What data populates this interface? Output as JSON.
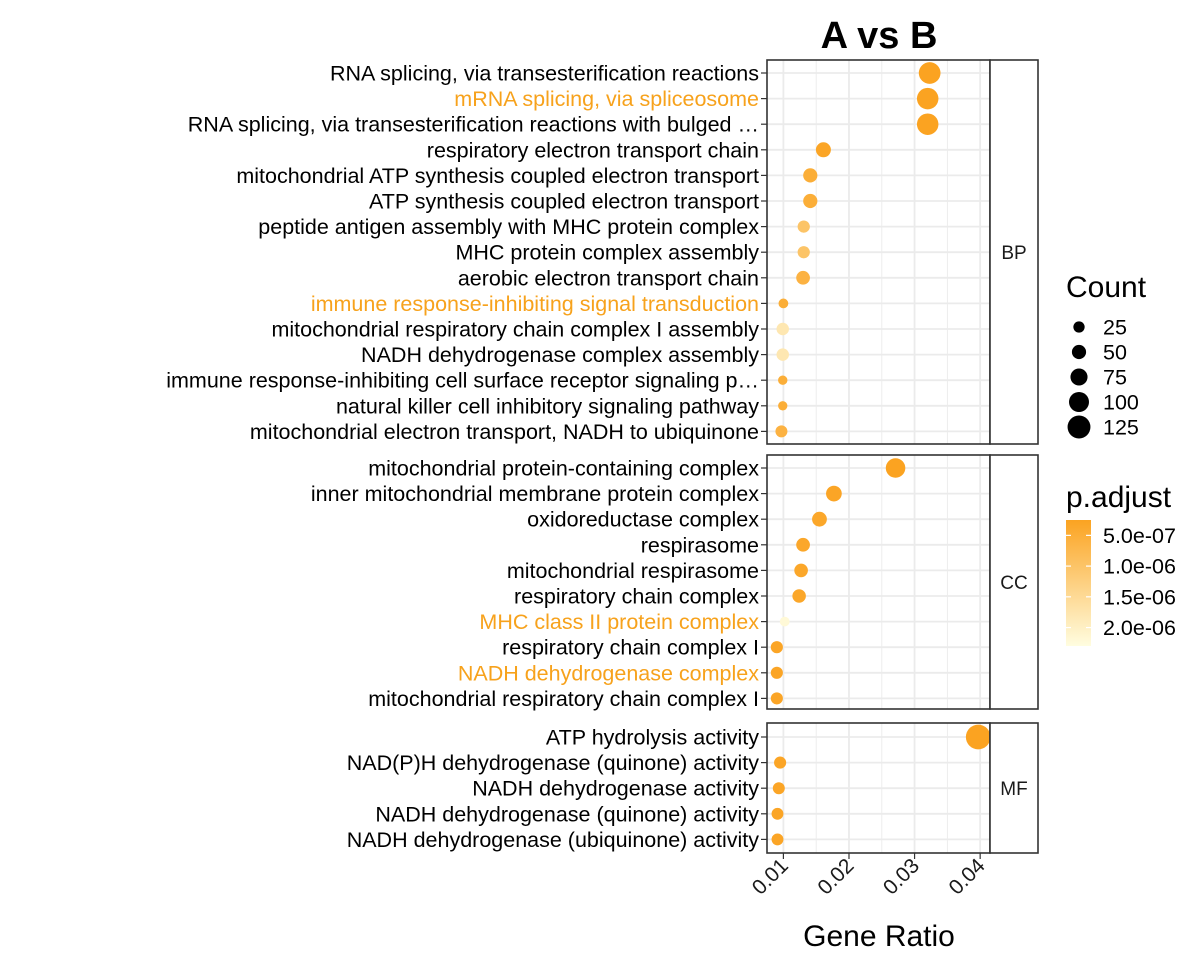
{
  "chart_data": {
    "type": "scatter",
    "title": "A vs B",
    "xlabel": "Gene Ratio",
    "xlim": [
      0.0075,
      0.0415
    ],
    "x_ticks": [
      {
        "value": 0.01,
        "label": "0.01"
      },
      {
        "value": 0.02,
        "label": "0.02"
      },
      {
        "value": 0.03,
        "label": "0.03"
      },
      {
        "value": 0.04,
        "label": "0.04"
      }
    ],
    "panels": [
      {
        "name": "BP",
        "terms": [
          {
            "label": "RNA splicing, via transesterification reactions",
            "gene_ratio": 0.0323,
            "count": 115,
            "p_adjust": 2.5e-07,
            "highlight": false
          },
          {
            "label": "mRNA splicing, via spliceosome",
            "gene_ratio": 0.032,
            "count": 113,
            "p_adjust": 2.5e-07,
            "highlight": true
          },
          {
            "label": "RNA splicing, via transesterification reactions with bulged …",
            "gene_ratio": 0.032,
            "count": 113,
            "p_adjust": 2.5e-07,
            "highlight": false
          },
          {
            "label": "respiratory electron transport chain",
            "gene_ratio": 0.0161,
            "count": 57,
            "p_adjust": 3e-07,
            "highlight": false
          },
          {
            "label": "mitochondrial ATP synthesis coupled electron transport",
            "gene_ratio": 0.0141,
            "count": 50,
            "p_adjust": 5e-07,
            "highlight": false
          },
          {
            "label": "ATP synthesis coupled electron transport",
            "gene_ratio": 0.0141,
            "count": 50,
            "p_adjust": 5e-07,
            "highlight": false
          },
          {
            "label": "peptide antigen assembly with MHC protein complex",
            "gene_ratio": 0.0131,
            "count": 33,
            "p_adjust": 1e-06,
            "highlight": false
          },
          {
            "label": "MHC protein complex assembly",
            "gene_ratio": 0.0131,
            "count": 33,
            "p_adjust": 1e-06,
            "highlight": false
          },
          {
            "label": "aerobic electron transport chain",
            "gene_ratio": 0.013,
            "count": 46,
            "p_adjust": 6e-07,
            "highlight": false
          },
          {
            "label": "immune response-inhibiting signal transduction",
            "gene_ratio": 0.01,
            "count": 12,
            "p_adjust": 5e-07,
            "highlight": true
          },
          {
            "label": "mitochondrial respiratory chain complex I assembly",
            "gene_ratio": 0.0099,
            "count": 35,
            "p_adjust": 1.8e-06,
            "highlight": false
          },
          {
            "label": "NADH dehydrogenase complex assembly",
            "gene_ratio": 0.0099,
            "count": 35,
            "p_adjust": 1.8e-06,
            "highlight": false
          },
          {
            "label": "immune response-inhibiting cell surface receptor signaling p…",
            "gene_ratio": 0.0099,
            "count": 8,
            "p_adjust": 5e-07,
            "highlight": false
          },
          {
            "label": "natural killer cell inhibitory signaling pathway",
            "gene_ratio": 0.0099,
            "count": 8,
            "p_adjust": 5e-07,
            "highlight": false
          },
          {
            "label": "mitochondrial electron transport, NADH to ubiquinone",
            "gene_ratio": 0.0097,
            "count": 31,
            "p_adjust": 6e-07,
            "highlight": false
          }
        ]
      },
      {
        "name": "CC",
        "terms": [
          {
            "label": "mitochondrial protein-containing complex",
            "gene_ratio": 0.0271,
            "count": 96,
            "p_adjust": 2.5e-07,
            "highlight": false
          },
          {
            "label": "inner mitochondrial membrane protein complex",
            "gene_ratio": 0.0177,
            "count": 63,
            "p_adjust": 3e-07,
            "highlight": false
          },
          {
            "label": "oxidoreductase complex",
            "gene_ratio": 0.0155,
            "count": 55,
            "p_adjust": 3.5e-07,
            "highlight": false
          },
          {
            "label": "respirasome",
            "gene_ratio": 0.013,
            "count": 46,
            "p_adjust": 3.5e-07,
            "highlight": false
          },
          {
            "label": "mitochondrial respirasome",
            "gene_ratio": 0.0127,
            "count": 45,
            "p_adjust": 3.5e-07,
            "highlight": false
          },
          {
            "label": "respiratory chain complex",
            "gene_ratio": 0.0124,
            "count": 44,
            "p_adjust": 3.5e-07,
            "highlight": false
          },
          {
            "label": "MHC class II protein complex",
            "gene_ratio": 0.0102,
            "count": 12,
            "p_adjust": 2.2e-06,
            "highlight": true
          },
          {
            "label": "respiratory chain complex I",
            "gene_ratio": 0.009,
            "count": 32,
            "p_adjust": 3e-07,
            "highlight": false
          },
          {
            "label": "NADH dehydrogenase complex",
            "gene_ratio": 0.009,
            "count": 32,
            "p_adjust": 3e-07,
            "highlight": true
          },
          {
            "label": "mitochondrial respiratory chain complex I",
            "gene_ratio": 0.009,
            "count": 32,
            "p_adjust": 3e-07,
            "highlight": false
          }
        ]
      },
      {
        "name": "MF",
        "terms": [
          {
            "label": "ATP hydrolysis activity",
            "gene_ratio": 0.0397,
            "count": 140,
            "p_adjust": 2.5e-07,
            "highlight": false
          },
          {
            "label": "NAD(P)H dehydrogenase (quinone) activity",
            "gene_ratio": 0.0095,
            "count": 32,
            "p_adjust": 3e-07,
            "highlight": false
          },
          {
            "label": "NADH dehydrogenase activity",
            "gene_ratio": 0.0093,
            "count": 31,
            "p_adjust": 3e-07,
            "highlight": false
          },
          {
            "label": "NADH dehydrogenase (quinone) activity",
            "gene_ratio": 0.0091,
            "count": 30,
            "p_adjust": 3e-07,
            "highlight": false
          },
          {
            "label": "NADH dehydrogenase (ubiquinone) activity",
            "gene_ratio": 0.0091,
            "count": 30,
            "p_adjust": 3e-07,
            "highlight": false
          }
        ]
      }
    ],
    "legend_size": {
      "title": "Count",
      "entries": [
        {
          "label": "25",
          "value": 25
        },
        {
          "label": "50",
          "value": 50
        },
        {
          "label": "75",
          "value": 75
        },
        {
          "label": "100",
          "value": 100
        },
        {
          "label": "125",
          "value": 125
        }
      ]
    },
    "legend_color": {
      "title": "p.adjust",
      "range": [
        2.5e-07,
        2.3e-06
      ],
      "ticks": [
        {
          "label": "5.0e-07",
          "value": 5e-07
        },
        {
          "label": "1.0e-06",
          "value": 1e-06
        },
        {
          "label": "1.5e-06",
          "value": 1.5e-06
        },
        {
          "label": "2.0e-06",
          "value": 2e-06
        }
      ]
    },
    "colors": {
      "low_p": "#FBA321",
      "high_p": "#FFFDE0",
      "highlight_text": "#F7A21C",
      "text": "#000000",
      "grid": "#EBEBEB"
    }
  }
}
